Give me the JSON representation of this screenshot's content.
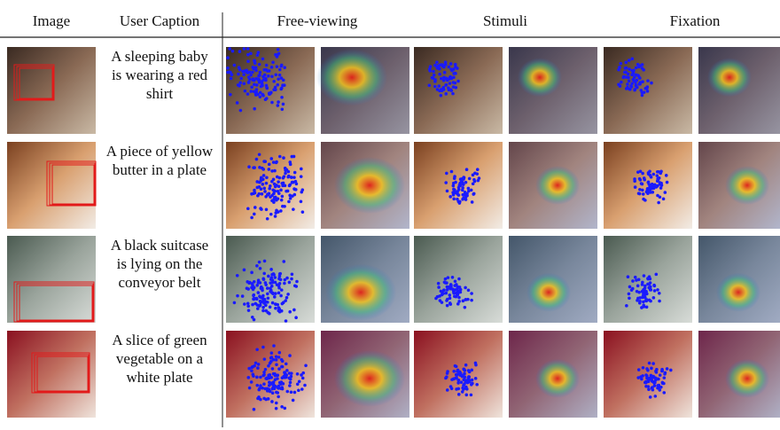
{
  "header": {
    "columns": [
      "Image",
      "User Caption",
      "Free-viewing",
      "Stimuli",
      "Fixation"
    ]
  },
  "rows": [
    {
      "caption": [
        "A sleeping baby",
        "is wearing a red",
        "shirt"
      ]
    },
    {
      "caption": [
        "A piece of yellow",
        "butter in a plate"
      ]
    },
    {
      "caption": [
        "A black suitcase",
        "is lying on the",
        "conveyor belt"
      ]
    },
    {
      "caption": [
        "A slice of green",
        "vegetable on a",
        "white plate"
      ]
    }
  ]
}
